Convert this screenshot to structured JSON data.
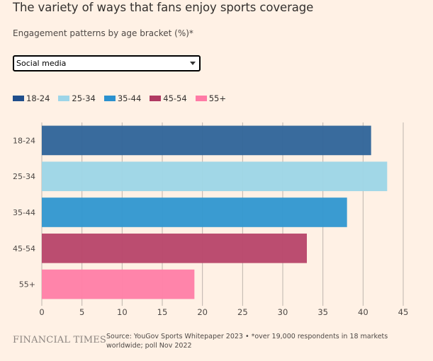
{
  "header": {
    "title": "The variety of ways that fans enjoy sports coverage",
    "subtitle": "Engagement patterns by age bracket (%)*"
  },
  "filter": {
    "selected": "Social media"
  },
  "legend": [
    {
      "label": "18-24",
      "color": "#1f4e8c"
    },
    {
      "label": "25-34",
      "color": "#9dd5e8"
    },
    {
      "label": "35-44",
      "color": "#2b91cf"
    },
    {
      "label": "45-54",
      "color": "#b03a62"
    },
    {
      "label": "55+",
      "color": "#ff7aa5"
    }
  ],
  "chart_data": {
    "type": "bar",
    "orientation": "horizontal",
    "title": "The variety of ways that fans enjoy sports coverage",
    "subtitle": "Engagement patterns by age bracket (%)*",
    "categories": [
      "18-24",
      "25-34",
      "35-44",
      "45-54",
      "55+"
    ],
    "values": [
      41,
      43,
      38,
      33,
      19
    ],
    "colors": [
      "#33669a",
      "#9ed6e6",
      "#3498d0",
      "#b9476b",
      "#ff80a7"
    ],
    "xlabel": "",
    "ylabel": "",
    "xlim": [
      0,
      45
    ],
    "xticks": [
      0,
      5,
      10,
      15,
      20,
      25,
      30,
      35,
      40,
      45
    ],
    "grid": true,
    "legend_position": "top-left"
  },
  "footer": {
    "logo": "FINANCIAL TIMES",
    "source": "Source: YouGov Sports Whitepaper 2023 • *over 19,000 respondents in 18 markets worldwide; poll Nov 2022"
  }
}
